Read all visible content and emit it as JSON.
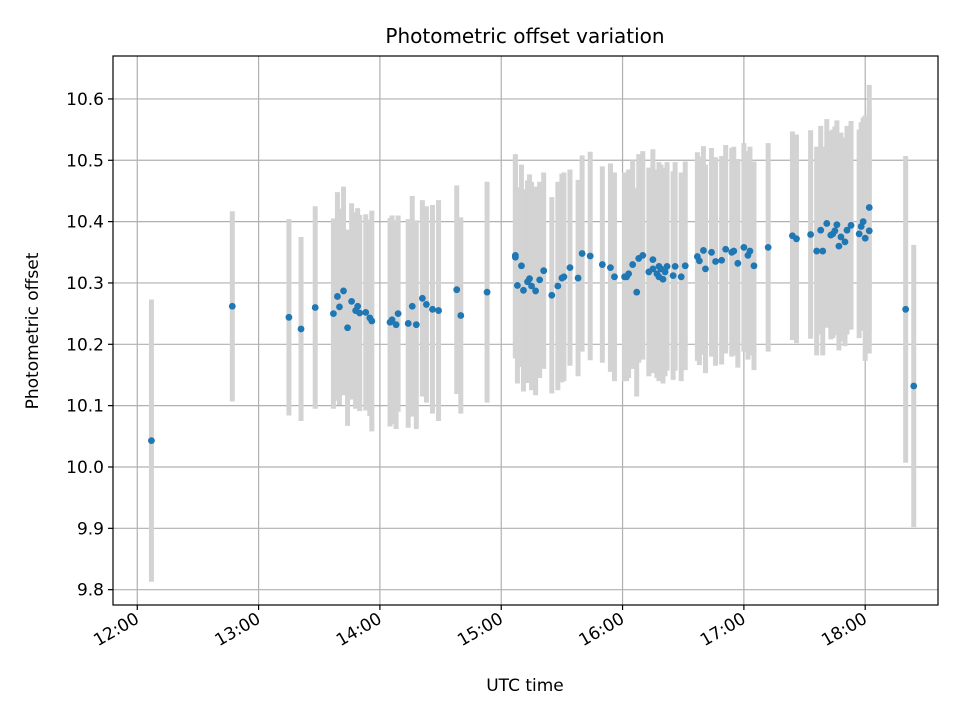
{
  "chart_data": {
    "type": "scatter",
    "title": "Photometric offset variation",
    "xlabel": "UTC time",
    "ylabel": "Photometric offset",
    "x_ticks": [
      "12:00",
      "13:00",
      "14:00",
      "15:00",
      "16:00",
      "17:00",
      "18:00"
    ],
    "y_ticks": [
      "9.8",
      "9.9",
      "10.0",
      "10.1",
      "10.2",
      "10.3",
      "10.4",
      "10.5",
      "10.6"
    ],
    "xlim": [
      "11:48",
      "18:36"
    ],
    "ylim": [
      9.775,
      10.67
    ],
    "grid": true,
    "x_tick_rotation_deg": 30,
    "marker_color": "#1f77b4",
    "errorbar_color": "#d3d3d3",
    "series": [
      {
        "x": [
          "12:07",
          "12:47",
          "13:15",
          "13:21",
          "13:28",
          "13:37",
          "13:39",
          "13:40",
          "13:42",
          "13:44",
          "13:46",
          "13:48",
          "13:49",
          "13:50",
          "13:53",
          "13:55",
          "13:56",
          "14:05",
          "14:06",
          "14:08",
          "14:09",
          "14:14",
          "14:16",
          "14:18",
          "14:21",
          "14:23",
          "14:26",
          "14:29",
          "14:38",
          "14:40",
          "14:53",
          "15:07",
          "15:07",
          "15:08",
          "15:10",
          "15:11",
          "15:13",
          "15:14",
          "15:15",
          "15:17",
          "15:19",
          "15:21",
          "15:25",
          "15:28",
          "15:30",
          "15:31",
          "15:34",
          "15:38",
          "15:40",
          "15:44",
          "15:50",
          "15:54",
          "15:56",
          "16:01",
          "16:02",
          "16:03",
          "16:05",
          "16:07",
          "16:08",
          "16:10",
          "16:13",
          "16:15",
          "16:15",
          "16:17",
          "16:18",
          "16:18",
          "16:19",
          "16:20",
          "16:21",
          "16:22",
          "16:25",
          "16:26",
          "16:29",
          "16:31",
          "16:37",
          "16:38",
          "16:40",
          "16:41",
          "16:44",
          "16:46",
          "16:49",
          "16:51",
          "16:54",
          "16:55",
          "16:57",
          "17:00",
          "17:02",
          "17:03",
          "17:05",
          "17:12",
          "17:24",
          "17:26",
          "17:33",
          "17:36",
          "17:38",
          "17:39",
          "17:41",
          "17:43",
          "17:44",
          "17:45",
          "17:46",
          "17:47",
          "17:48",
          "17:50",
          "17:51",
          "17:53",
          "17:57",
          "17:58",
          "17:59",
          "18:00",
          "18:02",
          "18:02",
          "18:20",
          "18:24"
        ],
        "y": [
          10.043,
          10.262,
          10.244,
          10.225,
          10.26,
          10.25,
          10.278,
          10.261,
          10.287,
          10.227,
          10.27,
          10.255,
          10.262,
          10.251,
          10.252,
          10.243,
          10.238,
          10.236,
          10.24,
          10.232,
          10.25,
          10.234,
          10.262,
          10.232,
          10.275,
          10.265,
          10.257,
          10.255,
          10.289,
          10.247,
          10.285,
          10.345,
          10.342,
          10.296,
          10.328,
          10.288,
          10.302,
          10.307,
          10.295,
          10.287,
          10.305,
          10.32,
          10.28,
          10.295,
          10.308,
          10.31,
          10.325,
          10.308,
          10.348,
          10.344,
          10.33,
          10.325,
          10.31,
          10.31,
          10.31,
          10.315,
          10.33,
          10.285,
          10.34,
          10.345,
          10.318,
          10.323,
          10.338,
          10.315,
          10.327,
          10.31,
          10.323,
          10.306,
          10.318,
          10.327,
          10.312,
          10.327,
          10.31,
          10.328,
          10.343,
          10.336,
          10.353,
          10.323,
          10.35,
          10.335,
          10.337,
          10.355,
          10.35,
          10.352,
          10.332,
          10.358,
          10.345,
          10.352,
          10.328,
          10.358,
          10.377,
          10.372,
          10.379,
          10.352,
          10.386,
          10.352,
          10.397,
          10.378,
          10.38,
          10.385,
          10.395,
          10.36,
          10.375,
          10.367,
          10.386,
          10.394,
          10.38,
          10.392,
          10.4,
          10.373,
          10.385,
          10.423,
          10.257,
          10.132
        ],
        "yerr": [
          0.23,
          0.155,
          0.16,
          0.15,
          0.165,
          0.155,
          0.17,
          0.16,
          0.17,
          0.16,
          0.16,
          0.16,
          0.16,
          0.16,
          0.16,
          0.16,
          0.18,
          0.17,
          0.17,
          0.17,
          0.16,
          0.17,
          0.18,
          0.17,
          0.16,
          0.16,
          0.17,
          0.18,
          0.17,
          0.16,
          0.18,
          0.165,
          0.165,
          0.16,
          0.165,
          0.165,
          0.165,
          0.17,
          0.17,
          0.17,
          0.16,
          0.16,
          0.16,
          0.17,
          0.17,
          0.17,
          0.16,
          0.16,
          0.16,
          0.17,
          0.16,
          0.17,
          0.17,
          0.17,
          0.17,
          0.17,
          0.17,
          0.17,
          0.17,
          0.17,
          0.17,
          0.17,
          0.18,
          0.17,
          0.17,
          0.17,
          0.17,
          0.17,
          0.17,
          0.17,
          0.17,
          0.17,
          0.17,
          0.17,
          0.17,
          0.17,
          0.17,
          0.17,
          0.17,
          0.17,
          0.17,
          0.17,
          0.17,
          0.17,
          0.17,
          0.17,
          0.17,
          0.17,
          0.17,
          0.17,
          0.17,
          0.17,
          0.17,
          0.17,
          0.17,
          0.17,
          0.17,
          0.17,
          0.17,
          0.17,
          0.17,
          0.17,
          0.17,
          0.17,
          0.17,
          0.17,
          0.17,
          0.17,
          0.17,
          0.2,
          0.2,
          0.2,
          0.25,
          0.23
        ]
      }
    ]
  }
}
